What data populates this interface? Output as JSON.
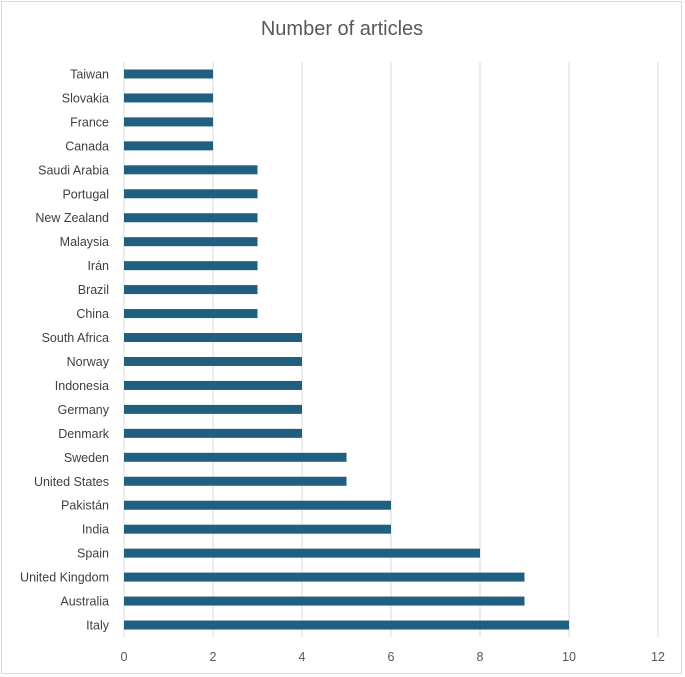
{
  "chart_data": {
    "type": "bar",
    "orientation": "horizontal",
    "title": "Number of articles",
    "xlabel": "",
    "ylabel": "",
    "categories": [
      "Taiwan",
      "Slovakia",
      "France",
      "Canada",
      "Saudi Arabia",
      "Portugal",
      "New Zealand",
      "Malaysia",
      "Irán",
      "Brazil",
      "China",
      "South Africa",
      "Norway",
      "Indonesia",
      "Germany",
      "Denmark",
      "Sweden",
      "United States",
      "Pakistán",
      "India",
      "Spain",
      "United Kingdom",
      "Australia",
      "Italy"
    ],
    "values": [
      2,
      2,
      2,
      2,
      3,
      3,
      3,
      3,
      3,
      3,
      3,
      4,
      4,
      4,
      4,
      4,
      5,
      5,
      6,
      6,
      8,
      9,
      9,
      10
    ],
    "xlim": [
      0,
      12
    ],
    "xticks": [
      0,
      2,
      4,
      6,
      8,
      10,
      12
    ],
    "grid": "vertical",
    "legend": "none",
    "bar_color": "#1f5f80"
  }
}
